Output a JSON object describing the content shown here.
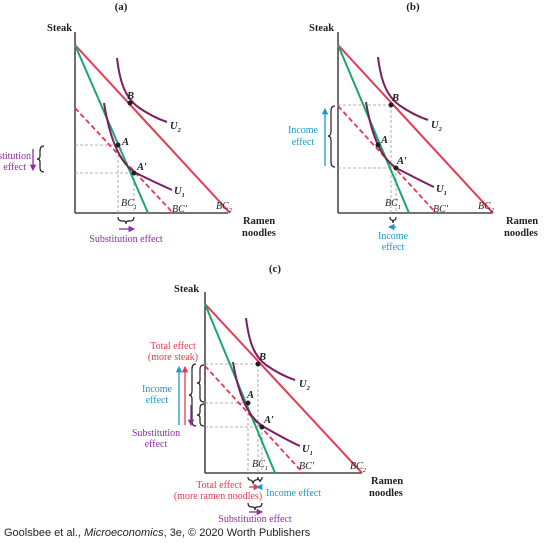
{
  "colors": {
    "budget_original": "#e8384f",
    "budget_compensated": "#e8384f",
    "budget_new": "#18a86b",
    "indifference": "#7b1f5e",
    "substitution": "#8b2f9c",
    "income": "#1a9ac9",
    "total": "#e8384f",
    "guide": "#9a9a9a",
    "axis": "#231f20"
  },
  "panels": {
    "a": {
      "title": "(a)"
    },
    "b": {
      "title": "(b)"
    },
    "c": {
      "title": "(c)"
    }
  },
  "axis": {
    "y_label": "Steak",
    "x_label_1": "Ramen",
    "x_label_2": "noodles"
  },
  "points": {
    "A": "A",
    "A_prime": "A′",
    "B": "B"
  },
  "curves": {
    "u1": {
      "base": "U",
      "sub": "1"
    },
    "u2": {
      "base": "U",
      "sub": "2"
    },
    "bc1": {
      "base": "BC",
      "sub": "1"
    },
    "bc2": {
      "base": "BC",
      "sub": "2"
    },
    "bc_prime": "BC′"
  },
  "annotations": {
    "a_substitution_left_1": "Substitution",
    "a_substitution_left_2": "effect",
    "a_substitution_bottom": "Substitution effect",
    "b_income_left_1": "Income",
    "b_income_left_2": "effect",
    "b_income_bottom_1": "Income",
    "b_income_bottom_2": "effect",
    "c_total_left_1": "Total effect",
    "c_total_left_2": "(more steak)",
    "c_income_left_1": "Income",
    "c_income_left_2": "effect",
    "c_substitution_left_1": "Substitution",
    "c_substitution_left_2": "effect",
    "c_total_bottom_1": "Total effect",
    "c_total_bottom_2": "(more ramen noodles)",
    "c_income_bottom": "Income effect",
    "c_substitution_bottom": "Substitution effect"
  },
  "credit": {
    "authors": "Goolsbee et al., ",
    "book": "Microeconomics",
    "rest": ", 3e, © 2020 Worth Publishers"
  }
}
